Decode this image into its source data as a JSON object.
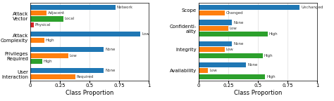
{
  "chart_data": [
    {
      "type": "bar",
      "orientation": "horizontal",
      "xlabel": "Class Proportion",
      "groups": [
        {
          "label": "Attack\nVector",
          "categories": [
            "Network",
            "Adjacent",
            "Local",
            "Physical"
          ],
          "values": [
            0.72,
            0.14,
            0.28,
            0.03
          ]
        },
        {
          "label": "Attack\nComplexity",
          "categories": [
            "Low",
            "High"
          ],
          "values": [
            0.93,
            0.12
          ]
        },
        {
          "label": "Privileges\nRequired",
          "categories": [
            "None",
            "Low",
            "High"
          ],
          "values": [
            0.62,
            0.32,
            0.1
          ]
        },
        {
          "label": "User\nInteraction",
          "categories": [
            "None",
            "Required"
          ],
          "values": [
            0.62,
            0.38
          ]
        }
      ],
      "xlim": [
        0,
        1
      ],
      "xticks": [
        0,
        0.25,
        0.5,
        0.75,
        1
      ],
      "grid": true
    },
    {
      "type": "bar",
      "orientation": "horizontal",
      "xlabel": "Class Proportion",
      "groups": [
        {
          "label": "Scope",
          "categories": [
            "Unchanged",
            "Changed"
          ],
          "values": [
            0.85,
            0.22
          ]
        },
        {
          "label": "Confidenti-\nality",
          "categories": [
            "None",
            "Low",
            "High"
          ],
          "values": [
            0.28,
            0.25,
            0.58
          ]
        },
        {
          "label": "Integrity",
          "categories": [
            "None",
            "Low",
            "High"
          ],
          "values": [
            0.28,
            0.22,
            0.54
          ]
        },
        {
          "label": "Availability",
          "categories": [
            "None",
            "Low",
            "High"
          ],
          "values": [
            0.4,
            0.08,
            0.56
          ]
        }
      ],
      "xlim": [
        0,
        1
      ],
      "xticks": [
        0,
        0.25,
        0.5,
        0.75,
        1
      ],
      "grid": true
    }
  ]
}
